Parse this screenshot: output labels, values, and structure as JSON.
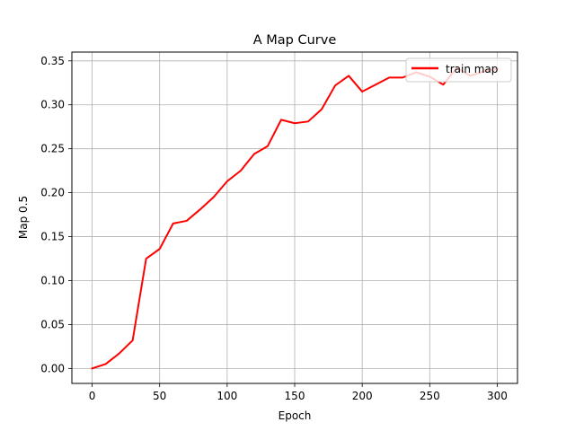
{
  "chart_data": {
    "type": "line",
    "title": "A Map Curve",
    "xlabel": "Epoch",
    "ylabel": "Map 0.5",
    "xlim": [
      -15,
      315
    ],
    "ylim": [
      -0.017,
      0.36
    ],
    "xticks": [
      0,
      50,
      100,
      150,
      200,
      250,
      300
    ],
    "xtick_labels": [
      "0",
      "50",
      "100",
      "150",
      "200",
      "250",
      "300"
    ],
    "yticks": [
      0.0,
      0.05,
      0.1,
      0.15,
      0.2,
      0.25,
      0.3,
      0.35
    ],
    "ytick_labels": [
      "0.00",
      "0.05",
      "0.10",
      "0.15",
      "0.20",
      "0.25",
      "0.30",
      "0.35"
    ],
    "grid": true,
    "legend_position": "top-right",
    "series": [
      {
        "name": "train map",
        "color": "#ff0000",
        "x": [
          0,
          10,
          20,
          30,
          40,
          50,
          60,
          70,
          80,
          90,
          100,
          110,
          120,
          130,
          140,
          150,
          160,
          170,
          180,
          190,
          200,
          210,
          220,
          230,
          240,
          250,
          260,
          270,
          280,
          290,
          300
        ],
        "y": [
          0.0,
          0.005,
          0.017,
          0.032,
          0.125,
          0.136,
          0.165,
          0.168,
          0.181,
          0.195,
          0.213,
          0.225,
          0.244,
          0.253,
          0.283,
          0.279,
          0.281,
          0.295,
          0.322,
          0.333,
          0.315,
          0.323,
          0.331,
          0.331,
          0.337,
          0.332,
          0.323,
          0.342,
          0.333,
          0.338,
          0.341
        ]
      }
    ]
  }
}
